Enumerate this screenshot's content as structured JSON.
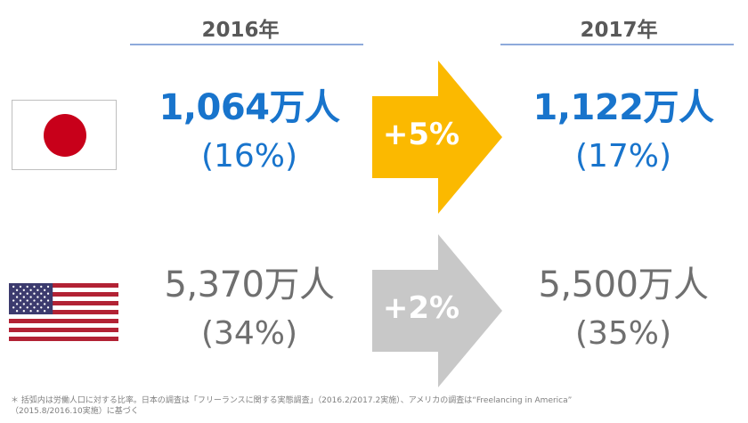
{
  "headers": {
    "year_2016": "2016年",
    "year_2017": "2017年"
  },
  "rows": [
    {
      "country": "Japan",
      "flag_icon": "japan-flag-icon",
      "value_2016": "1,064万人",
      "share_2016": "(16%)",
      "change": "+5%",
      "value_2017": "1,122万人",
      "share_2017": "(17%)",
      "accent_color": "#1874cc",
      "arrow_color": "#fbb900"
    },
    {
      "country": "USA",
      "flag_icon": "usa-flag-icon",
      "value_2016": "5,370万人",
      "share_2016": "(34%)",
      "change": "+2%",
      "value_2017": "5,500万人",
      "share_2017": "(35%)",
      "accent_color": "#6f6f6f",
      "arrow_color": "#c8c8c8"
    }
  ],
  "footnote": "＊ 括弧内は労働人口に対する比率。日本の調査は「フリーランスに関する実態調査」（2016.2/2017.2実施）、アメリカの調査は“Freelancing in America”\n（2015.8/2016.10実施）に基づく"
}
